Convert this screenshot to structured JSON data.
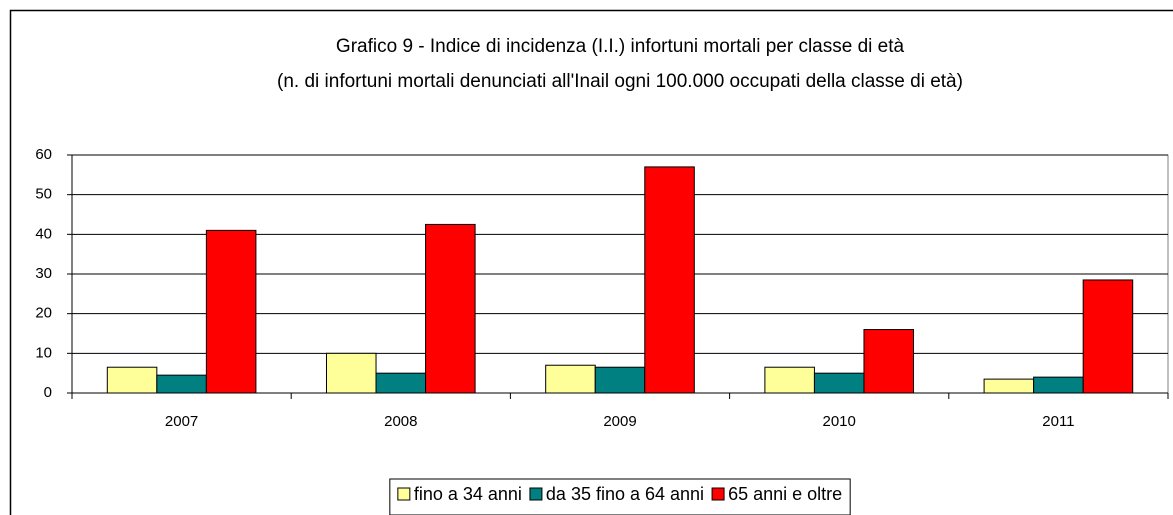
{
  "chart_data": {
    "type": "bar",
    "title": "Grafico 9 - Indice di incidenza (I.I.) infortuni mortali per classe di età",
    "subtitle": "(n. di infortuni mortali denunciati all'Inail ogni 100.000 occupati della classe di età)",
    "categories": [
      "2007",
      "2008",
      "2009",
      "2010",
      "2011"
    ],
    "series": [
      {
        "name": "fino a 34 anni",
        "color": "#ffff99",
        "values": [
          6.5,
          10,
          7,
          6.5,
          3.5
        ]
      },
      {
        "name": "da 35 fino a 64 anni",
        "color": "#008080",
        "values": [
          4.5,
          5,
          6.5,
          5,
          4
        ]
      },
      {
        "name": "65 anni e oltre",
        "color": "#ff0000",
        "values": [
          41,
          42.5,
          57,
          16,
          28.5
        ]
      }
    ],
    "ylim": [
      0,
      60
    ],
    "yticks": [
      0,
      10,
      20,
      30,
      40,
      50,
      60
    ],
    "grid": true,
    "legend": "bottom"
  }
}
